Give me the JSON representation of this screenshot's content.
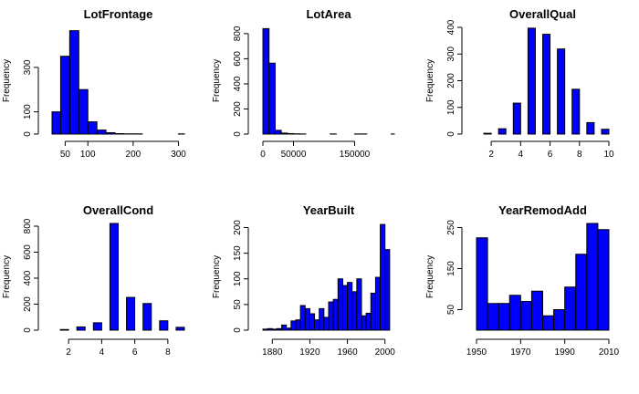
{
  "chart_data": [
    {
      "type": "bar",
      "title": "LotFrontage",
      "ylabel": "Frequency",
      "xlim": [
        21,
        313
      ],
      "ylim": [
        0,
        480
      ],
      "xticks": [
        50,
        100,
        200,
        300
      ],
      "yticks": [
        0,
        100,
        300
      ],
      "bins": [
        {
          "x0": 21,
          "x1": 40,
          "value": 100
        },
        {
          "x0": 40,
          "x1": 60,
          "value": 350
        },
        {
          "x0": 60,
          "x1": 80,
          "value": 465
        },
        {
          "x0": 80,
          "x1": 100,
          "value": 200
        },
        {
          "x0": 100,
          "x1": 120,
          "value": 55
        },
        {
          "x0": 120,
          "x1": 140,
          "value": 18
        },
        {
          "x0": 140,
          "x1": 160,
          "value": 6
        },
        {
          "x0": 160,
          "x1": 180,
          "value": 2
        },
        {
          "x0": 180,
          "x1": 200,
          "value": 1
        },
        {
          "x0": 200,
          "x1": 220,
          "value": 1
        },
        {
          "x0": 220,
          "x1": 240,
          "value": 0
        },
        {
          "x0": 240,
          "x1": 260,
          "value": 0
        },
        {
          "x0": 260,
          "x1": 280,
          "value": 0
        },
        {
          "x0": 280,
          "x1": 300,
          "value": 0
        },
        {
          "x0": 300,
          "x1": 313,
          "value": 1
        }
      ]
    },
    {
      "type": "bar",
      "title": "LotArea",
      "ylabel": "Frequency",
      "xlim": [
        0,
        215000
      ],
      "ylim": [
        0,
        850
      ],
      "xticks": [
        0,
        50000,
        150000
      ],
      "yticks": [
        0,
        200,
        400,
        600,
        800
      ],
      "bins": [
        {
          "x0": 0,
          "x1": 10000,
          "value": 840
        },
        {
          "x0": 10000,
          "x1": 20000,
          "value": 565
        },
        {
          "x0": 20000,
          "x1": 30000,
          "value": 30
        },
        {
          "x0": 30000,
          "x1": 40000,
          "value": 8
        },
        {
          "x0": 40000,
          "x1": 50000,
          "value": 4
        },
        {
          "x0": 50000,
          "x1": 60000,
          "value": 2
        },
        {
          "x0": 60000,
          "x1": 70000,
          "value": 1
        },
        {
          "x0": 110000,
          "x1": 120000,
          "value": 1
        },
        {
          "x0": 150000,
          "x1": 160000,
          "value": 1
        },
        {
          "x0": 160000,
          "x1": 170000,
          "value": 1
        },
        {
          "x0": 210000,
          "x1": 215000,
          "value": 1
        }
      ]
    },
    {
      "type": "bar",
      "title": "OverallQual",
      "ylabel": "Frequency",
      "xlim": [
        1,
        10
      ],
      "ylim": [
        0,
        400
      ],
      "xticks": [
        2,
        4,
        6,
        8,
        10
      ],
      "yticks": [
        0,
        100,
        200,
        300,
        400
      ],
      "bins": [
        {
          "x0": 1.5,
          "x1": 2,
          "value": 3
        },
        {
          "x0": 2.5,
          "x1": 3,
          "value": 20
        },
        {
          "x0": 3.5,
          "x1": 4,
          "value": 116
        },
        {
          "x0": 4.5,
          "x1": 5,
          "value": 397
        },
        {
          "x0": 5.5,
          "x1": 6,
          "value": 374
        },
        {
          "x0": 6.5,
          "x1": 7,
          "value": 319
        },
        {
          "x0": 7.5,
          "x1": 8,
          "value": 168
        },
        {
          "x0": 8.5,
          "x1": 9,
          "value": 43
        },
        {
          "x0": 9.5,
          "x1": 10,
          "value": 18
        }
      ]
    },
    {
      "type": "bar",
      "title": "OverallCond",
      "ylabel": "Frequency",
      "xlim": [
        1,
        9
      ],
      "ylim": [
        0,
        821
      ],
      "xticks": [
        2,
        4,
        6,
        8
      ],
      "yticks": [
        0,
        200,
        400,
        600,
        800
      ],
      "bins": [
        {
          "x0": 1.5,
          "x1": 2,
          "value": 5
        },
        {
          "x0": 2.5,
          "x1": 3,
          "value": 25
        },
        {
          "x0": 3.5,
          "x1": 4,
          "value": 57
        },
        {
          "x0": 4.5,
          "x1": 5,
          "value": 821
        },
        {
          "x0": 5.5,
          "x1": 6,
          "value": 252
        },
        {
          "x0": 6.5,
          "x1": 7,
          "value": 205
        },
        {
          "x0": 7.5,
          "x1": 8,
          "value": 72
        },
        {
          "x0": 8.5,
          "x1": 9,
          "value": 22
        }
      ]
    },
    {
      "type": "bar",
      "title": "YearBuilt",
      "ylabel": "Frequency",
      "xlim": [
        1870,
        2010
      ],
      "ylim": [
        0,
        208
      ],
      "xticks": [
        1880,
        1920,
        1960,
        2000
      ],
      "yticks": [
        0,
        50,
        100,
        150,
        200
      ],
      "bins": [
        {
          "x0": 1870,
          "x1": 1875,
          "value": 2
        },
        {
          "x0": 1875,
          "x1": 1880,
          "value": 3
        },
        {
          "x0": 1880,
          "x1": 1885,
          "value": 2
        },
        {
          "x0": 1885,
          "x1": 1890,
          "value": 3
        },
        {
          "x0": 1890,
          "x1": 1895,
          "value": 10
        },
        {
          "x0": 1895,
          "x1": 1900,
          "value": 4
        },
        {
          "x0": 1900,
          "x1": 1905,
          "value": 18
        },
        {
          "x0": 1905,
          "x1": 1910,
          "value": 20
        },
        {
          "x0": 1910,
          "x1": 1915,
          "value": 48
        },
        {
          "x0": 1915,
          "x1": 1920,
          "value": 42
        },
        {
          "x0": 1920,
          "x1": 1925,
          "value": 32
        },
        {
          "x0": 1925,
          "x1": 1930,
          "value": 20
        },
        {
          "x0": 1930,
          "x1": 1935,
          "value": 42
        },
        {
          "x0": 1935,
          "x1": 1940,
          "value": 25
        },
        {
          "x0": 1940,
          "x1": 1945,
          "value": 55
        },
        {
          "x0": 1945,
          "x1": 1950,
          "value": 60
        },
        {
          "x0": 1950,
          "x1": 1955,
          "value": 100
        },
        {
          "x0": 1955,
          "x1": 1960,
          "value": 87
        },
        {
          "x0": 1960,
          "x1": 1965,
          "value": 93
        },
        {
          "x0": 1965,
          "x1": 1970,
          "value": 75
        },
        {
          "x0": 1970,
          "x1": 1975,
          "value": 100
        },
        {
          "x0": 1975,
          "x1": 1980,
          "value": 28
        },
        {
          "x0": 1980,
          "x1": 1985,
          "value": 33
        },
        {
          "x0": 1985,
          "x1": 1990,
          "value": 72
        },
        {
          "x0": 1990,
          "x1": 1995,
          "value": 103
        },
        {
          "x0": 1995,
          "x1": 2000,
          "value": 206
        },
        {
          "x0": 2000,
          "x1": 2005,
          "value": 157
        }
      ]
    },
    {
      "type": "bar",
      "title": "YearRemodAdd",
      "ylabel": "Frequency",
      "xlim": [
        1950,
        2010
      ],
      "ylim": [
        0,
        260
      ],
      "xticks": [
        1950,
        1970,
        1990,
        2010
      ],
      "yticks": [
        50,
        150,
        250
      ],
      "bins": [
        {
          "x0": 1950,
          "x1": 1955,
          "value": 225
        },
        {
          "x0": 1955,
          "x1": 1960,
          "value": 65
        },
        {
          "x0": 1960,
          "x1": 1965,
          "value": 65
        },
        {
          "x0": 1965,
          "x1": 1970,
          "value": 85
        },
        {
          "x0": 1970,
          "x1": 1975,
          "value": 70
        },
        {
          "x0": 1975,
          "x1": 1980,
          "value": 95
        },
        {
          "x0": 1980,
          "x1": 1985,
          "value": 35
        },
        {
          "x0": 1985,
          "x1": 1990,
          "value": 50
        },
        {
          "x0": 1990,
          "x1": 1995,
          "value": 105
        },
        {
          "x0": 1995,
          "x1": 2000,
          "value": 185
        },
        {
          "x0": 2000,
          "x1": 2005,
          "value": 260
        },
        {
          "x0": 2005,
          "x1": 2010,
          "value": 245
        }
      ]
    }
  ]
}
